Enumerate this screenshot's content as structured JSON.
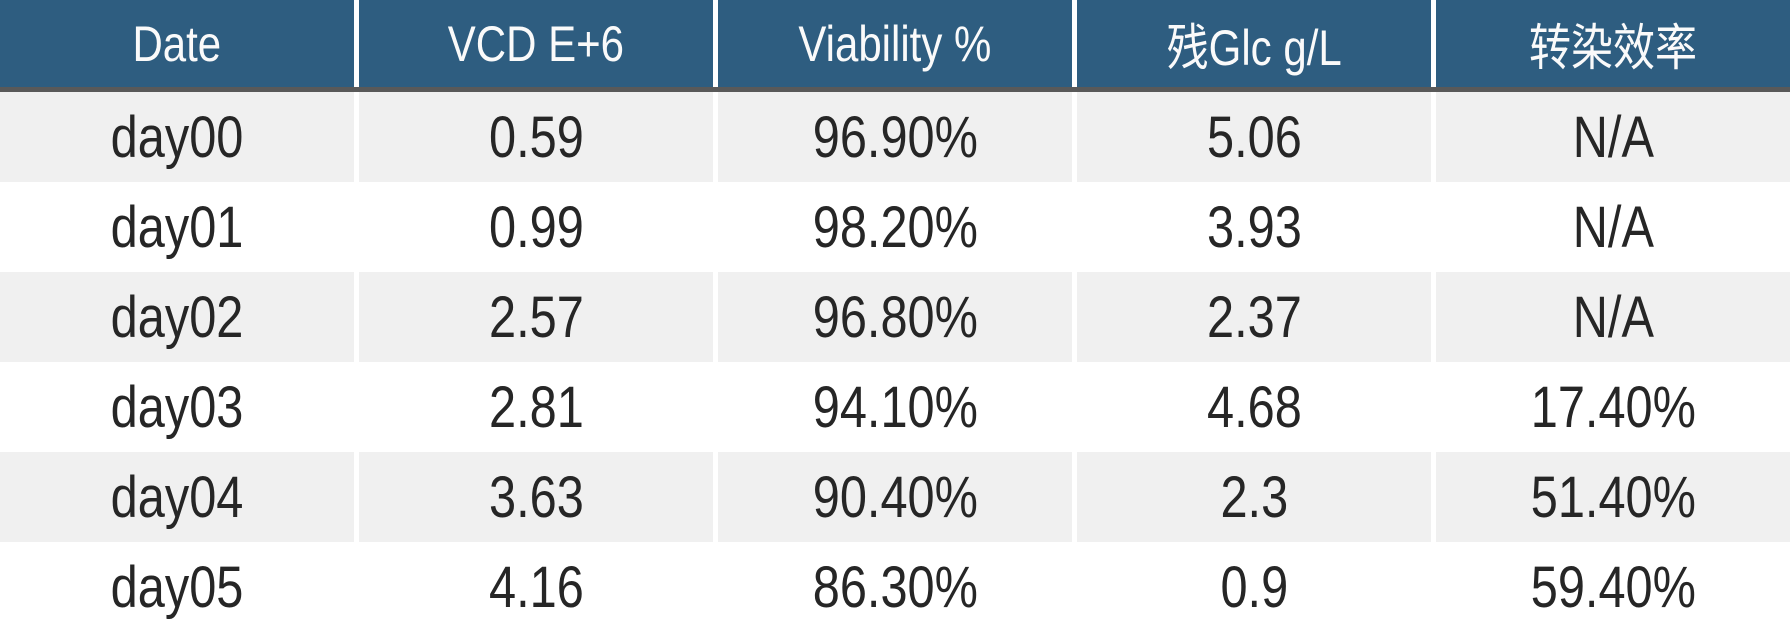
{
  "chart_data": {
    "type": "table",
    "columns": [
      "Date",
      "VCD E+6",
      "Viability %",
      "残Glc g/L",
      "转染效率"
    ],
    "rows": [
      [
        "day00",
        "0.59",
        "96.90%",
        "5.06",
        "N/A"
      ],
      [
        "day01",
        "0.99",
        "98.20%",
        "3.93",
        "N/A"
      ],
      [
        "day02",
        "2.57",
        "96.80%",
        "2.37",
        "N/A"
      ],
      [
        "day03",
        "2.81",
        "94.10%",
        "4.68",
        "17.40%"
      ],
      [
        "day04",
        "3.63",
        "90.40%",
        "2.3",
        "51.40%"
      ],
      [
        "day05",
        "4.16",
        "86.30%",
        "0.9",
        "59.40%"
      ]
    ],
    "layout": {
      "striped": true,
      "stripe_pattern": "odd-rows-gray",
      "header_position": "top"
    }
  },
  "colors": {
    "header_bg": "#2E5D80",
    "header_text": "#FAFAFA",
    "header_rule": "#595959",
    "row_alt_bg": "#F0F0F0",
    "row_bg": "#FFFFFF",
    "body_text": "#262626",
    "separator": "#FFFFFF"
  }
}
